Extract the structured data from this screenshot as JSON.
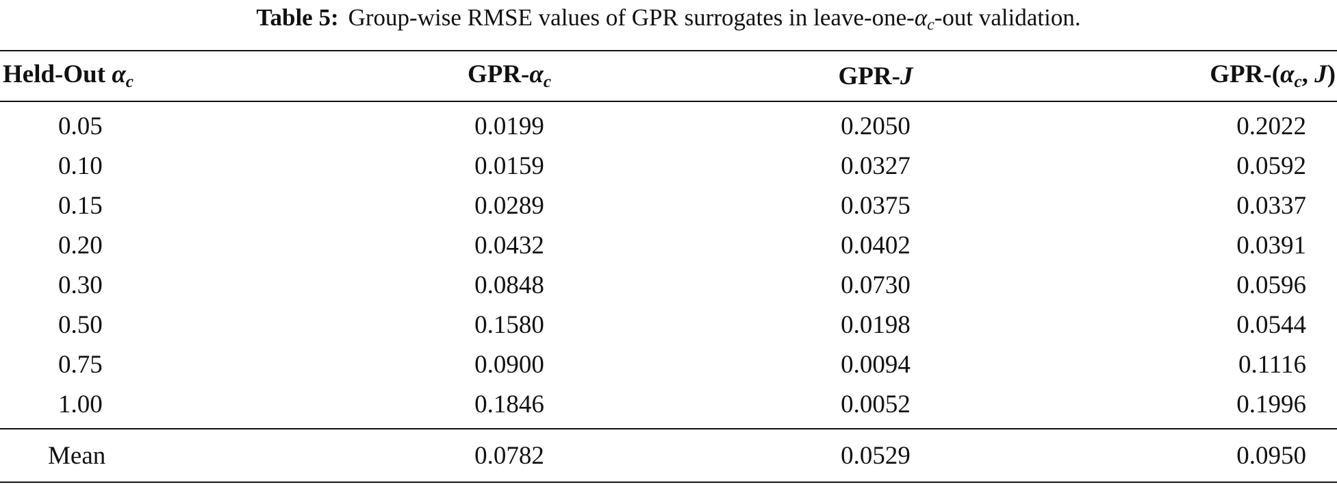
{
  "caption": {
    "label": "Table 5:",
    "text_before": "Group-wise RMSE values of GPR surrogates in leave-one-",
    "alpha": "α",
    "sub": "c",
    "text_after": "-out validation."
  },
  "table": {
    "headers": {
      "heldout_prefix": "Held-Out ",
      "heldout_sym": "α",
      "heldout_sub": "c",
      "gpr_alpha_prefix": "GPR-",
      "gpr_alpha_sym": "α",
      "gpr_alpha_sub": "c",
      "gpr_j_prefix": "GPR-",
      "gpr_j_sym": "J",
      "gpr_both_prefix": "GPR-(",
      "gpr_both_sym1": "α",
      "gpr_both_sub": "c",
      "gpr_both_sep": ", ",
      "gpr_both_sym2": "J",
      "gpr_both_close": ")"
    },
    "rows": [
      [
        "0.05",
        "0.0199",
        "0.2050",
        "0.2022"
      ],
      [
        "0.10",
        "0.0159",
        "0.0327",
        "0.0592"
      ],
      [
        "0.15",
        "0.0289",
        "0.0375",
        "0.0337"
      ],
      [
        "0.20",
        "0.0432",
        "0.0402",
        "0.0391"
      ],
      [
        "0.30",
        "0.0848",
        "0.0730",
        "0.0596"
      ],
      [
        "0.50",
        "0.1580",
        "0.0198",
        "0.0544"
      ],
      [
        "0.75",
        "0.0900",
        "0.0094",
        "0.1116"
      ],
      [
        "1.00",
        "0.1846",
        "0.0052",
        "0.1996"
      ]
    ],
    "mean": [
      "Mean",
      "0.0782",
      "0.0529",
      "0.0950"
    ]
  }
}
